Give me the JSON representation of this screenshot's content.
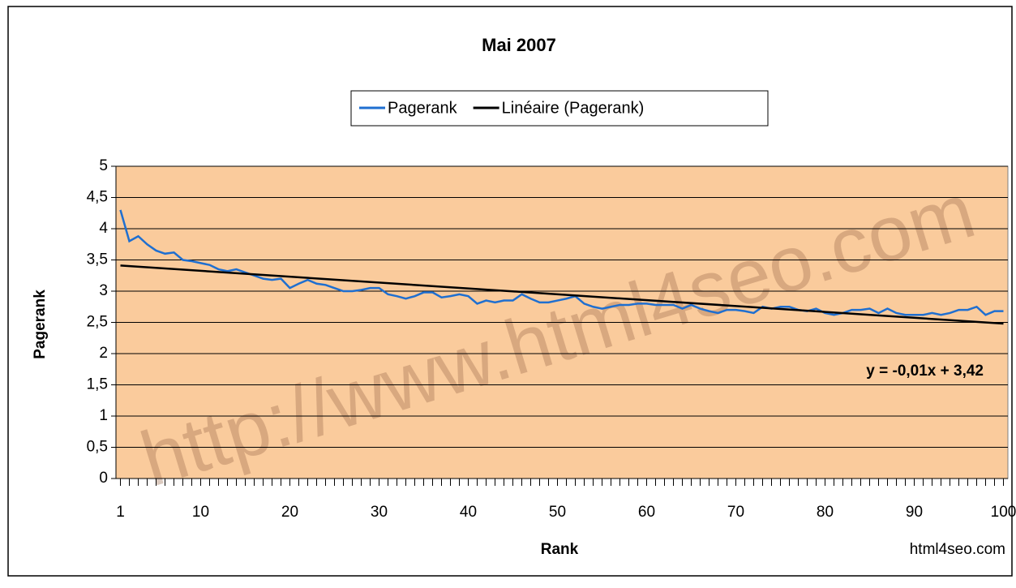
{
  "chart_data": {
    "type": "line",
    "title": "Mai 2007",
    "xlabel": "Rank",
    "ylabel": "Pagerank",
    "annotations": [
      "y = -0,01x + 3,42",
      "html4seo.com"
    ],
    "watermark": "http://www.html4seo.com",
    "x": [
      1,
      2,
      3,
      4,
      5,
      6,
      7,
      8,
      9,
      10,
      11,
      12,
      13,
      14,
      15,
      16,
      17,
      18,
      19,
      20,
      21,
      22,
      23,
      24,
      25,
      26,
      27,
      28,
      29,
      30,
      31,
      32,
      33,
      34,
      35,
      36,
      37,
      38,
      39,
      40,
      41,
      42,
      43,
      44,
      45,
      46,
      47,
      48,
      49,
      50,
      51,
      52,
      53,
      54,
      55,
      56,
      57,
      58,
      59,
      60,
      61,
      62,
      63,
      64,
      65,
      66,
      67,
      68,
      69,
      70,
      71,
      72,
      73,
      74,
      75,
      76,
      77,
      78,
      79,
      80,
      81,
      82,
      83,
      84,
      85,
      86,
      87,
      88,
      89,
      90,
      91,
      92,
      93,
      94,
      95,
      96,
      97,
      98,
      99,
      100
    ],
    "series": [
      {
        "name": "Pagerank",
        "color": "#1f6fd0",
        "values": [
          4.3,
          3.8,
          3.88,
          3.75,
          3.65,
          3.6,
          3.62,
          3.5,
          3.48,
          3.45,
          3.42,
          3.35,
          3.32,
          3.35,
          3.3,
          3.25,
          3.2,
          3.18,
          3.2,
          3.05,
          3.12,
          3.18,
          3.12,
          3.1,
          3.05,
          3.0,
          3.0,
          3.02,
          3.05,
          3.05,
          2.95,
          2.92,
          2.88,
          2.92,
          2.98,
          2.98,
          2.9,
          2.92,
          2.95,
          2.92,
          2.8,
          2.85,
          2.82,
          2.85,
          2.85,
          2.95,
          2.88,
          2.82,
          2.82,
          2.85,
          2.88,
          2.92,
          2.8,
          2.75,
          2.72,
          2.75,
          2.78,
          2.78,
          2.8,
          2.8,
          2.78,
          2.78,
          2.78,
          2.72,
          2.78,
          2.72,
          2.68,
          2.65,
          2.7,
          2.7,
          2.68,
          2.65,
          2.75,
          2.72,
          2.75,
          2.75,
          2.7,
          2.68,
          2.72,
          2.65,
          2.62,
          2.65,
          2.7,
          2.7,
          2.72,
          2.65,
          2.72,
          2.65,
          2.62,
          2.62,
          2.62,
          2.65,
          2.62,
          2.65,
          2.7,
          2.7,
          2.75,
          2.62,
          2.68,
          2.68
        ]
      },
      {
        "name": "Linéaire (Pagerank)",
        "color": "#000000",
        "x": [
          1,
          100
        ],
        "values": [
          3.41,
          2.48
        ]
      }
    ],
    "xlim": [
      0.5,
      100.5
    ],
    "xticks": [
      1,
      10,
      20,
      30,
      40,
      50,
      60,
      70,
      80,
      90,
      100
    ],
    "ylim": [
      0,
      5
    ],
    "yticks": [
      0,
      {
        "value": 0.5,
        "label": "0,5"
      },
      1,
      {
        "value": 1.5,
        "label": "1,5"
      },
      2,
      {
        "value": 2.5,
        "label": "2,5"
      },
      3,
      {
        "value": 3.5,
        "label": "3,5"
      },
      4,
      {
        "value": 4.5,
        "label": "4,5"
      },
      5
    ],
    "grid": true,
    "plot_background": "#facb9c",
    "legend": "top"
  }
}
